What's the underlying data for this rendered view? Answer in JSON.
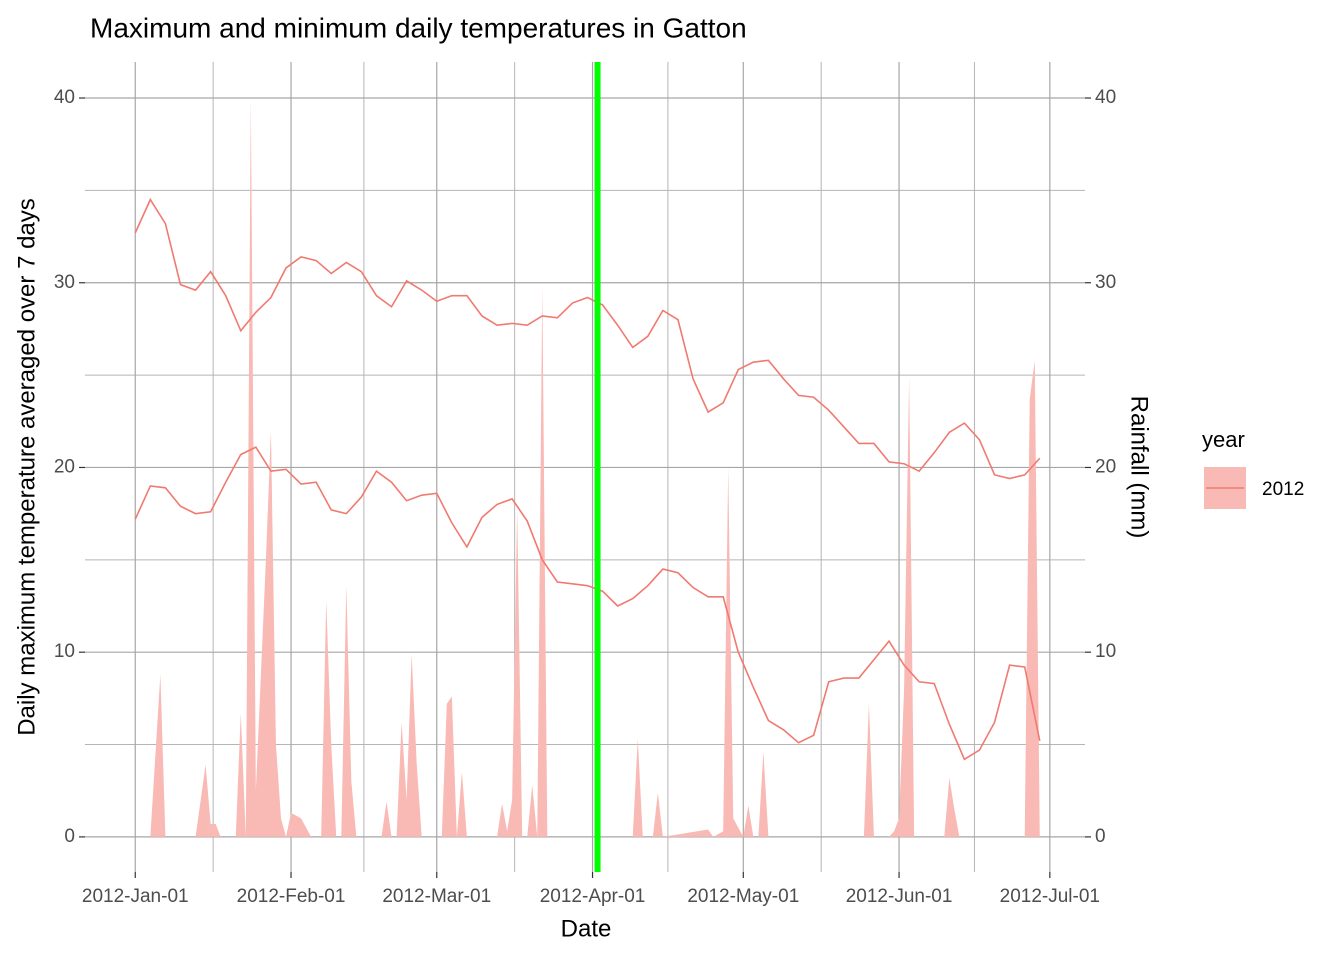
{
  "chart_data": {
    "type": "line",
    "title": "Maximum and minimum daily temperatures in Gatton",
    "x_label": "Date",
    "y_label": "Daily maximum temperature averaged over 7 days",
    "y2_label": "Rainfall (mm)",
    "legend_title": "year",
    "legend_position": "right",
    "grid": true,
    "xlim": [
      "2011-12-22",
      "2012-07-08"
    ],
    "xticks": [
      {
        "value": "2012-01-01",
        "label": "2012-Jan-01"
      },
      {
        "value": "2012-02-01",
        "label": "2012-Feb-01"
      },
      {
        "value": "2012-03-01",
        "label": "2012-Mar-01"
      },
      {
        "value": "2012-04-01",
        "label": "2012-Apr-01"
      },
      {
        "value": "2012-05-01",
        "label": "2012-May-01"
      },
      {
        "value": "2012-06-01",
        "label": "2012-Jun-01"
      },
      {
        "value": "2012-07-01",
        "label": "2012-Jul-01"
      }
    ],
    "ylim": [
      -1.9,
      41.95
    ],
    "yticks": [
      0,
      10,
      20,
      30,
      40
    ],
    "y2lim": [
      -1.9,
      41.95
    ],
    "y2ticks": [
      0,
      10,
      20,
      30,
      40
    ],
    "vline": {
      "x": "2012-04-02",
      "color": "#00ff00"
    },
    "x": [
      "2012-01-01",
      "2012-01-04",
      "2012-01-07",
      "2012-01-10",
      "2012-01-13",
      "2012-01-16",
      "2012-01-19",
      "2012-01-22",
      "2012-01-25",
      "2012-01-28",
      "2012-01-31",
      "2012-02-03",
      "2012-02-06",
      "2012-02-09",
      "2012-02-12",
      "2012-02-15",
      "2012-02-18",
      "2012-02-21",
      "2012-02-24",
      "2012-02-27",
      "2012-03-01",
      "2012-03-04",
      "2012-03-07",
      "2012-03-10",
      "2012-03-13",
      "2012-03-16",
      "2012-03-19",
      "2012-03-22",
      "2012-03-25",
      "2012-03-28",
      "2012-03-31",
      "2012-04-03",
      "2012-04-06",
      "2012-04-09",
      "2012-04-12",
      "2012-04-15",
      "2012-04-18",
      "2012-04-21",
      "2012-04-24",
      "2012-04-27",
      "2012-04-30",
      "2012-05-03",
      "2012-05-06",
      "2012-05-09",
      "2012-05-12",
      "2012-05-15",
      "2012-05-18",
      "2012-05-21",
      "2012-05-24",
      "2012-05-27",
      "2012-05-30",
      "2012-06-02",
      "2012-06-05",
      "2012-06-08",
      "2012-06-11",
      "2012-06-14",
      "2012-06-17",
      "2012-06-20",
      "2012-06-23",
      "2012-06-26",
      "2012-06-29"
    ],
    "series": [
      {
        "name": "2012",
        "type": "line",
        "color": "#f07a70",
        "values": [
          32.7,
          34.5,
          33.2,
          29.9,
          29.6,
          30.6,
          29.3,
          27.4,
          28.4,
          29.2,
          30.8,
          31.4,
          31.2,
          30.5,
          31.1,
          30.6,
          29.3,
          28.7,
          30.1,
          29.6,
          29.0,
          29.3,
          29.3,
          28.2,
          27.7,
          27.8,
          27.7,
          28.2,
          28.1,
          28.9,
          29.2,
          28.8,
          27.7,
          26.5,
          27.1,
          28.5,
          28.0,
          24.8,
          23.0,
          23.5,
          25.3,
          25.7,
          25.8,
          24.8,
          23.9,
          23.8,
          23.1,
          22.2,
          21.3,
          21.3,
          20.3,
          20.2,
          19.8,
          20.8,
          21.9,
          22.4,
          21.5,
          19.6,
          19.4,
          19.6,
          20.5
        ]
      },
      {
        "name": "2012",
        "type": "line",
        "color": "#f07a70",
        "values": [
          17.2,
          19.0,
          18.9,
          17.9,
          17.5,
          17.6,
          19.2,
          20.7,
          21.1,
          19.8,
          19.9,
          19.1,
          19.2,
          17.7,
          17.5,
          18.4,
          19.8,
          19.2,
          18.2,
          18.5,
          18.6,
          17.0,
          15.7,
          17.3,
          18.0,
          18.3,
          17.1,
          15.0,
          13.8,
          13.7,
          13.6,
          13.3,
          12.5,
          12.9,
          13.6,
          14.5,
          14.3,
          13.5,
          13.0,
          13.0,
          10.0,
          8.1,
          6.3,
          5.8,
          5.1,
          5.5,
          8.4,
          8.6,
          8.6,
          9.6,
          10.6,
          9.3,
          8.4,
          8.3,
          6.1,
          4.2,
          4.7,
          6.2,
          9.3,
          9.2,
          5.2
        ]
      },
      {
        "name": "2012",
        "type": "area",
        "axis": "y2",
        "color": "#f9b9b4",
        "x": [
          "2012-01-01",
          "2012-01-04",
          "2012-01-06",
          "2012-01-07",
          "2012-01-13",
          "2012-01-15",
          "2012-01-16",
          "2012-01-17",
          "2012-01-18",
          "2012-01-21",
          "2012-01-22",
          "2012-01-23",
          "2012-01-24",
          "2012-01-25",
          "2012-01-27",
          "2012-01-28",
          "2012-01-29",
          "2012-01-30",
          "2012-01-31",
          "2012-02-01",
          "2012-02-03",
          "2012-02-05",
          "2012-02-07",
          "2012-02-08",
          "2012-02-09",
          "2012-02-10",
          "2012-02-11",
          "2012-02-12",
          "2012-02-13",
          "2012-02-14",
          "2012-02-19",
          "2012-02-20",
          "2012-02-21",
          "2012-02-22",
          "2012-02-23",
          "2012-02-24",
          "2012-02-25",
          "2012-02-26",
          "2012-02-27",
          "2012-03-02",
          "2012-03-03",
          "2012-03-04",
          "2012-03-05",
          "2012-03-06",
          "2012-03-07",
          "2012-03-13",
          "2012-03-14",
          "2012-03-15",
          "2012-03-16",
          "2012-03-17",
          "2012-03-18",
          "2012-03-19",
          "2012-03-20",
          "2012-03-21",
          "2012-03-22",
          "2012-03-23",
          "2012-04-09",
          "2012-04-10",
          "2012-04-11",
          "2012-04-13",
          "2012-04-14",
          "2012-04-15",
          "2012-04-24",
          "2012-04-25",
          "2012-04-27",
          "2012-04-28",
          "2012-04-29",
          "2012-05-01",
          "2012-05-02",
          "2012-05-03",
          "2012-05-04",
          "2012-05-05",
          "2012-05-06",
          "2012-05-25",
          "2012-05-26",
          "2012-05-27",
          "2012-05-30",
          "2012-05-31",
          "2012-06-01",
          "2012-06-02",
          "2012-06-03",
          "2012-06-04",
          "2012-06-10",
          "2012-06-11",
          "2012-06-12",
          "2012-06-13",
          "2012-06-26",
          "2012-06-27",
          "2012-06-28",
          "2012-06-29"
        ],
        "values": [
          0,
          0,
          8.8,
          0,
          0,
          3.9,
          0.7,
          0.7,
          0,
          0,
          6.7,
          0,
          40,
          2.5,
          15,
          22,
          5,
          1,
          0,
          1.3,
          1,
          0,
          0,
          12.8,
          5,
          0,
          0,
          13.6,
          3,
          0,
          0,
          1.9,
          0,
          0,
          6.2,
          2,
          9.9,
          4,
          0,
          0,
          7.2,
          7.6,
          0,
          3.5,
          0,
          0,
          1.8,
          0.3,
          2,
          17.8,
          0,
          0,
          2.8,
          0,
          29.8,
          0,
          0,
          5.3,
          0,
          0,
          2.4,
          0,
          0.4,
          0,
          0.3,
          20,
          1,
          0,
          1.7,
          0,
          0,
          4.6,
          0,
          0,
          7.2,
          0,
          0,
          0.3,
          1,
          8,
          24.9,
          0,
          0,
          3.2,
          1.5,
          0,
          0,
          23.7,
          25.8,
          0
        ]
      }
    ]
  }
}
